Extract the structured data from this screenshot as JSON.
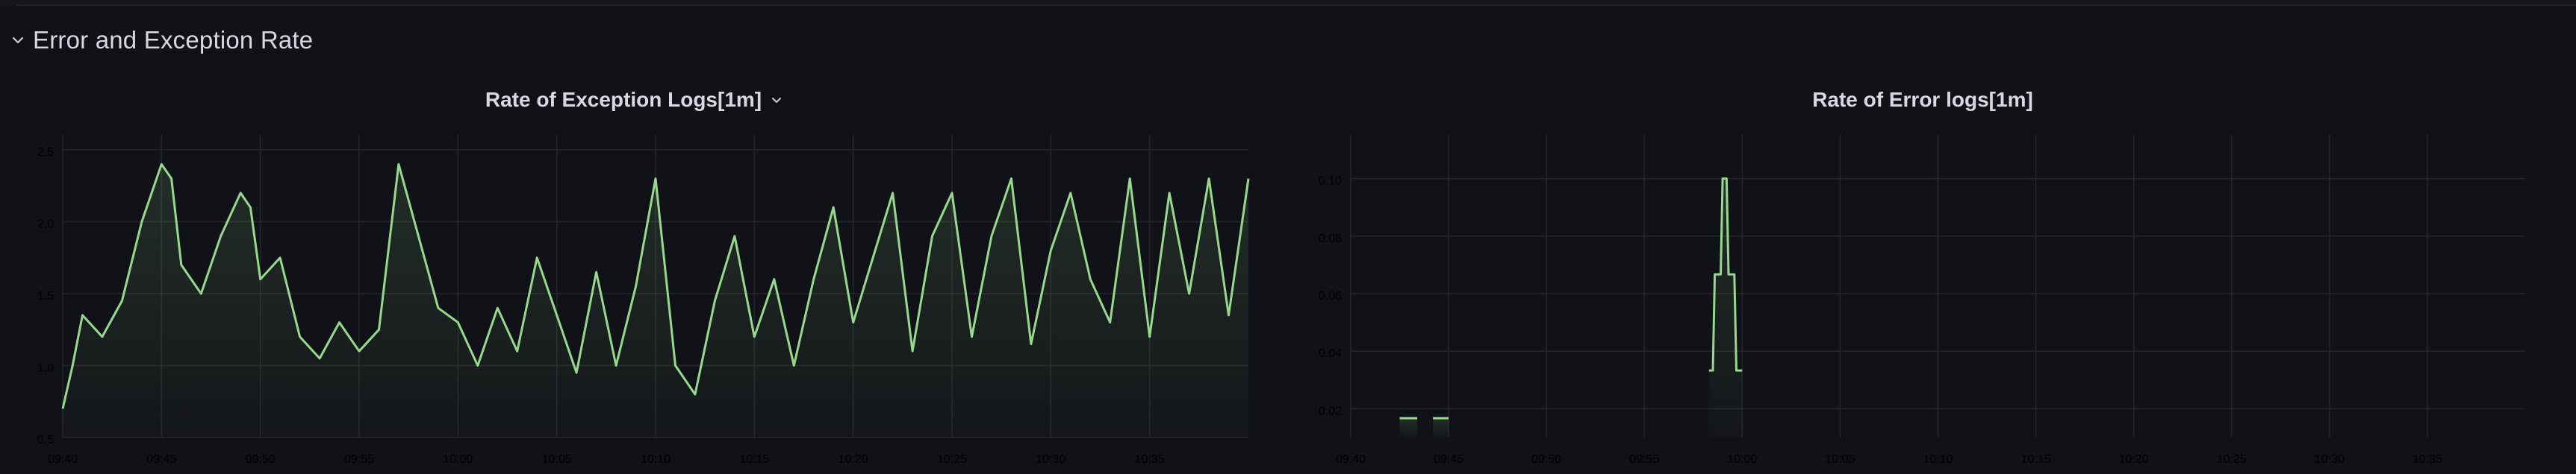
{
  "row": {
    "title": "Error and Exception Rate",
    "icon": "chevron-down-icon"
  },
  "panels": [
    {
      "title": "Rate of Exception Logs[1m]",
      "menu_icon": "chevron-down-icon",
      "line_color": "#96d98d"
    },
    {
      "title": "Rate of Error logs[1m]",
      "line_color": "#96d98d"
    }
  ],
  "chart_data": [
    {
      "type": "line",
      "title": "Rate of Exception Logs[1m]",
      "xlabel": "",
      "ylabel": "",
      "ylim": [
        0.5,
        2.5
      ],
      "yticks": [
        "0.5",
        "1.0",
        "1.5",
        "2.0",
        "2.5"
      ],
      "xticks": [
        "09:40",
        "09:45",
        "09:50",
        "09:55",
        "10:00",
        "10:05",
        "10:10",
        "10:15",
        "10:20",
        "10:25",
        "10:30",
        "10:35"
      ],
      "xrange_minutes": [
        0,
        60
      ],
      "grid": true,
      "fill": true,
      "series": [
        {
          "x": [
            0,
            0.5,
            1,
            2,
            3,
            4,
            5,
            5.5,
            6,
            7,
            8,
            9,
            9.5,
            10,
            11,
            12,
            13,
            14,
            15,
            16,
            17,
            18,
            19,
            20,
            21,
            22,
            23,
            24,
            25,
            26,
            27,
            28,
            29,
            30,
            31,
            32,
            33,
            34,
            35,
            36,
            37,
            38,
            39,
            40,
            41,
            42,
            43,
            44,
            45,
            46,
            47,
            48,
            49,
            50,
            51,
            52,
            53,
            54,
            55,
            56,
            57,
            58,
            59,
            60
          ],
          "y": [
            0.7,
            1.0,
            1.35,
            1.2,
            1.45,
            2.0,
            2.4,
            2.3,
            1.7,
            1.5,
            1.9,
            2.2,
            2.1,
            1.6,
            1.75,
            1.2,
            1.05,
            1.3,
            1.1,
            1.25,
            2.4,
            1.9,
            1.4,
            1.3,
            1.0,
            1.4,
            1.1,
            1.75,
            1.35,
            0.95,
            1.65,
            1.0,
            1.55,
            2.3,
            1.0,
            0.8,
            1.45,
            1.9,
            1.2,
            1.6,
            1.0,
            1.6,
            2.1,
            1.3,
            1.75,
            2.2,
            1.1,
            1.9,
            2.2,
            1.2,
            1.9,
            2.3,
            1.15,
            1.8,
            2.2,
            1.6,
            1.3,
            2.3,
            1.2,
            2.2,
            1.5,
            2.3,
            1.35,
            2.3
          ]
        }
      ]
    },
    {
      "type": "line",
      "title": "Rate of Error logs[1m]",
      "xlabel": "",
      "ylabel": "",
      "ylim": [
        0.01,
        0.11
      ],
      "yticks": [
        "0.02",
        "0.04",
        "0.06",
        "0.08",
        "0.10"
      ],
      "xticks": [
        "09:40",
        "09:45",
        "09:50",
        "09:55",
        "10:00",
        "10:05",
        "10:10",
        "10:15",
        "10:20",
        "10:25",
        "10:30",
        "10:35"
      ],
      "xrange_minutes": [
        0,
        60
      ],
      "grid": true,
      "fill": true,
      "segments": [
        {
          "x": [
            2.5,
            3.4
          ],
          "y": [
            0.0167,
            0.0167
          ]
        },
        {
          "x": [
            4.2,
            5.0
          ],
          "y": [
            0.0167,
            0.0167
          ]
        },
        {
          "x": [
            18.3,
            18.5,
            18.6,
            18.9,
            19.0,
            19.2,
            19.3,
            19.6,
            19.7,
            20.0
          ],
          "y": [
            0.0333,
            0.0333,
            0.0667,
            0.0667,
            0.1,
            0.1,
            0.0667,
            0.0667,
            0.0333,
            0.0333
          ]
        }
      ]
    }
  ]
}
